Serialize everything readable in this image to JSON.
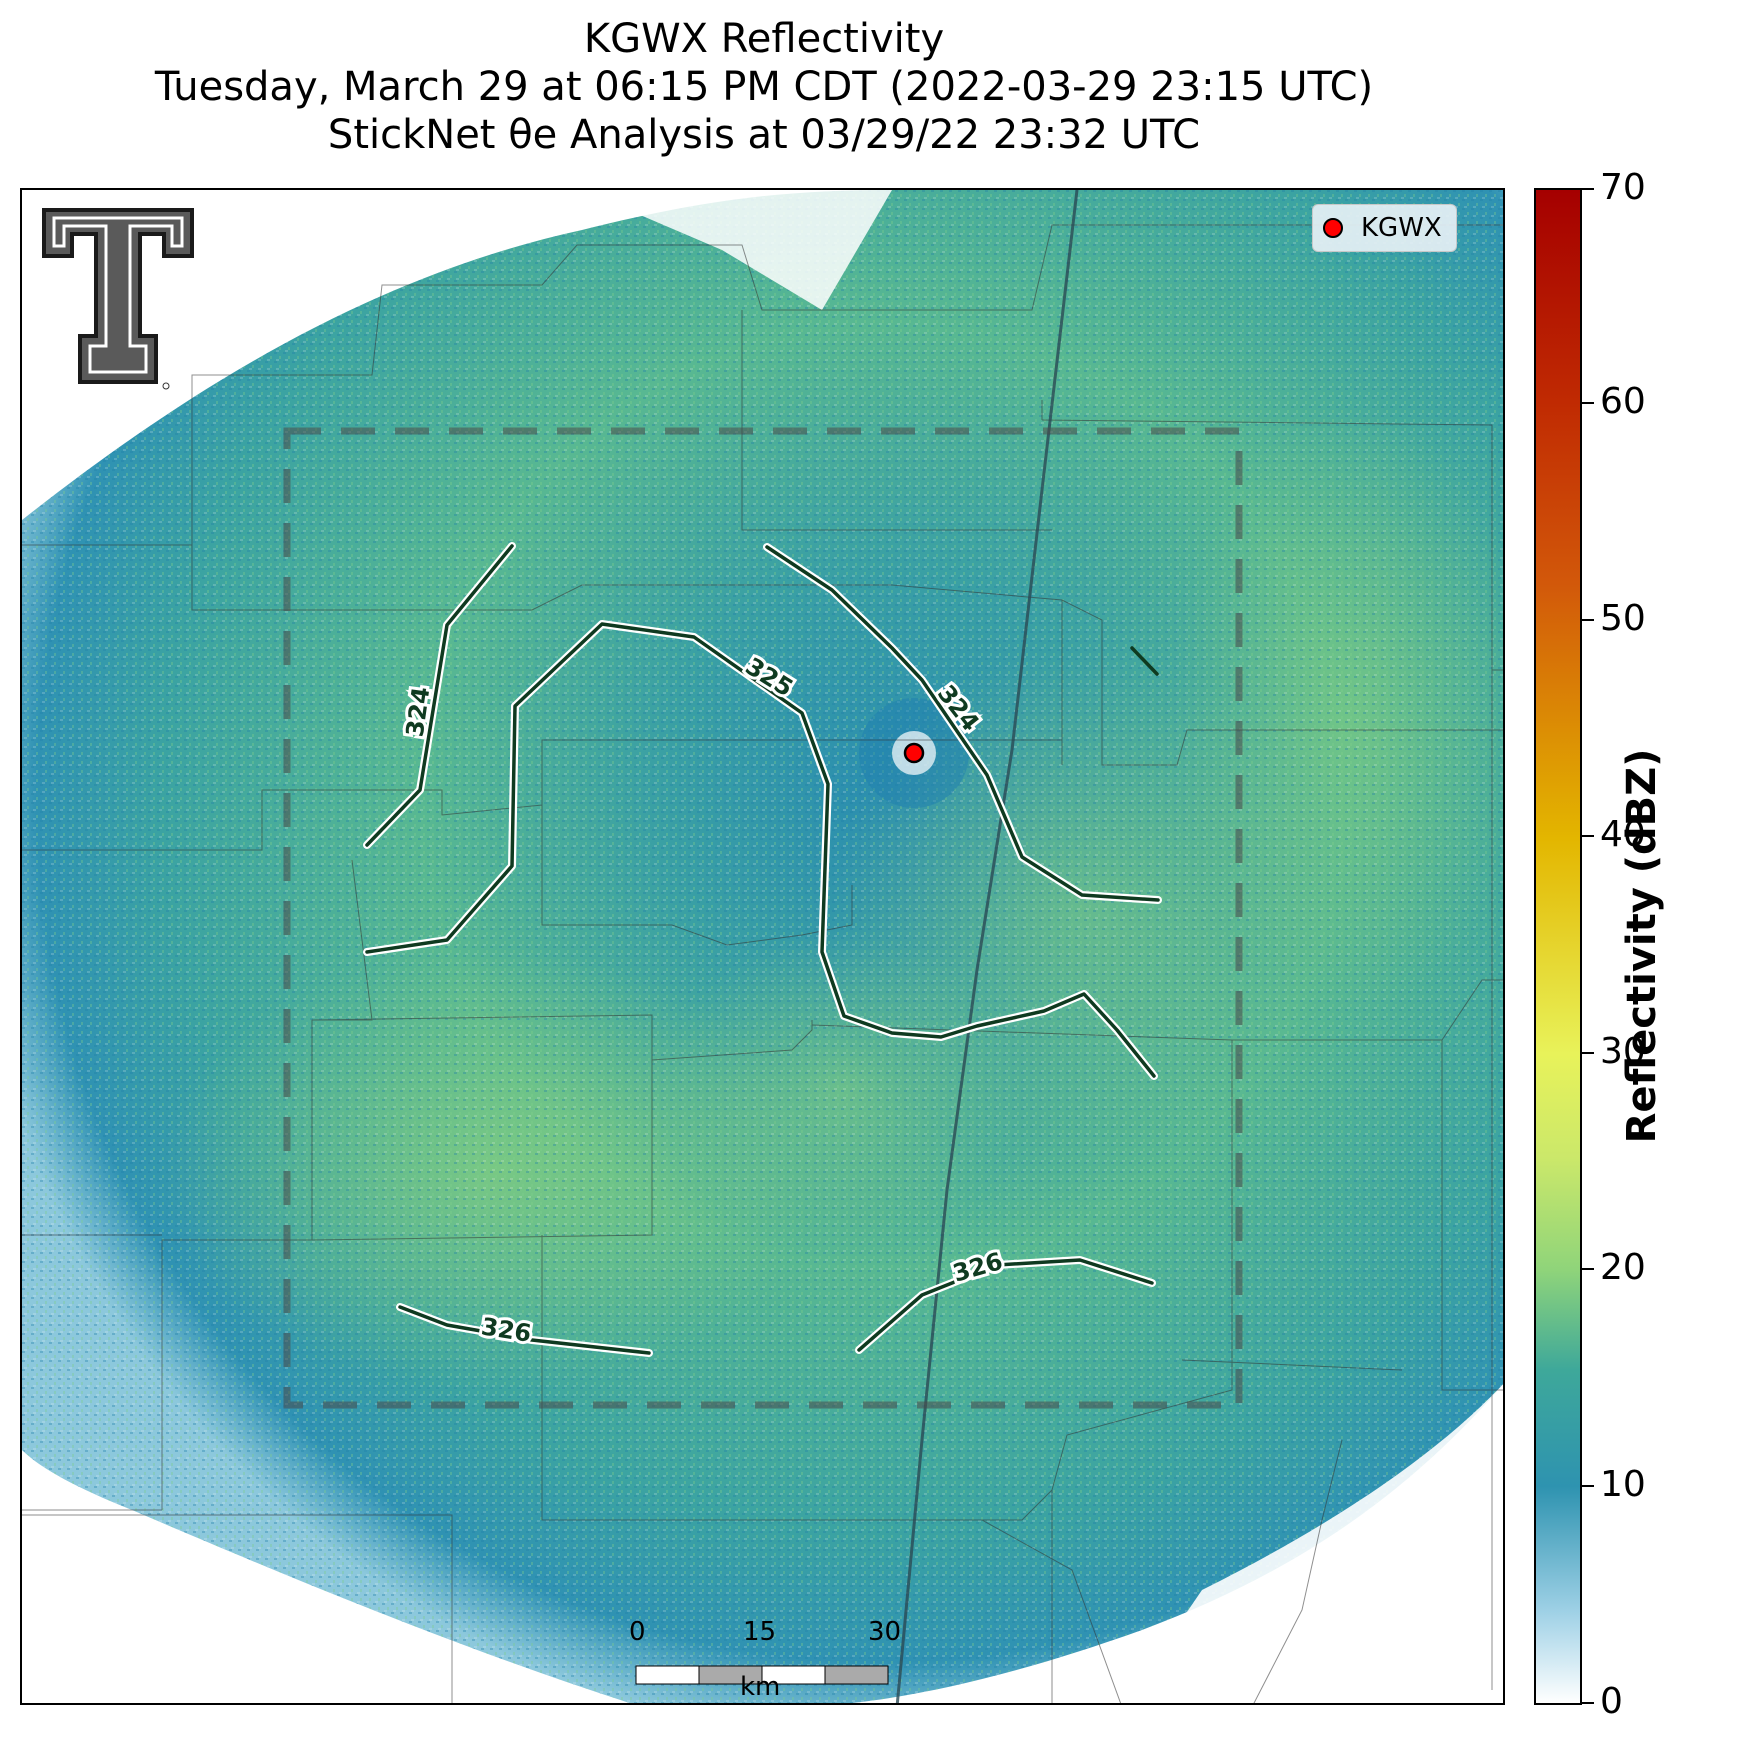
{
  "title": {
    "line1": "KGWX Reflectivity",
    "line2": "Tuesday, March 29 at 06:15 PM CDT (2022-03-29 23:15 UTC)",
    "line3": "StickNet θe Analysis at 03/29/22 23:32 UTC"
  },
  "legend": {
    "label": "KGWX",
    "marker_color": "#ff0000"
  },
  "colorbar": {
    "title": "Reflectivity (dBZ)",
    "min": 0,
    "max": 70,
    "ticks": [
      "0",
      "10",
      "20",
      "30",
      "40",
      "50",
      "60",
      "70"
    ],
    "colors": [
      "#ffffff",
      "#2e93b0",
      "#8fd47a",
      "#e8f25a",
      "#e3b600",
      "#d2580a",
      "#a50000"
    ]
  },
  "contours": [
    {
      "value": 324,
      "label": "324"
    },
    {
      "value": 324,
      "label": "324"
    },
    {
      "value": 325,
      "label": "325"
    },
    {
      "value": 326,
      "label": "326"
    },
    {
      "value": 326,
      "label": "326"
    }
  ],
  "scalebar": {
    "ticks": [
      "0",
      "15",
      "30"
    ],
    "unit": "km"
  },
  "logo": {
    "name": "texas-tech-double-t-logo"
  },
  "colors": {
    "reflectivity_base": "#2e93b0",
    "reflectivity_green": "#6cc08a",
    "contour": "#0f3a20"
  }
}
